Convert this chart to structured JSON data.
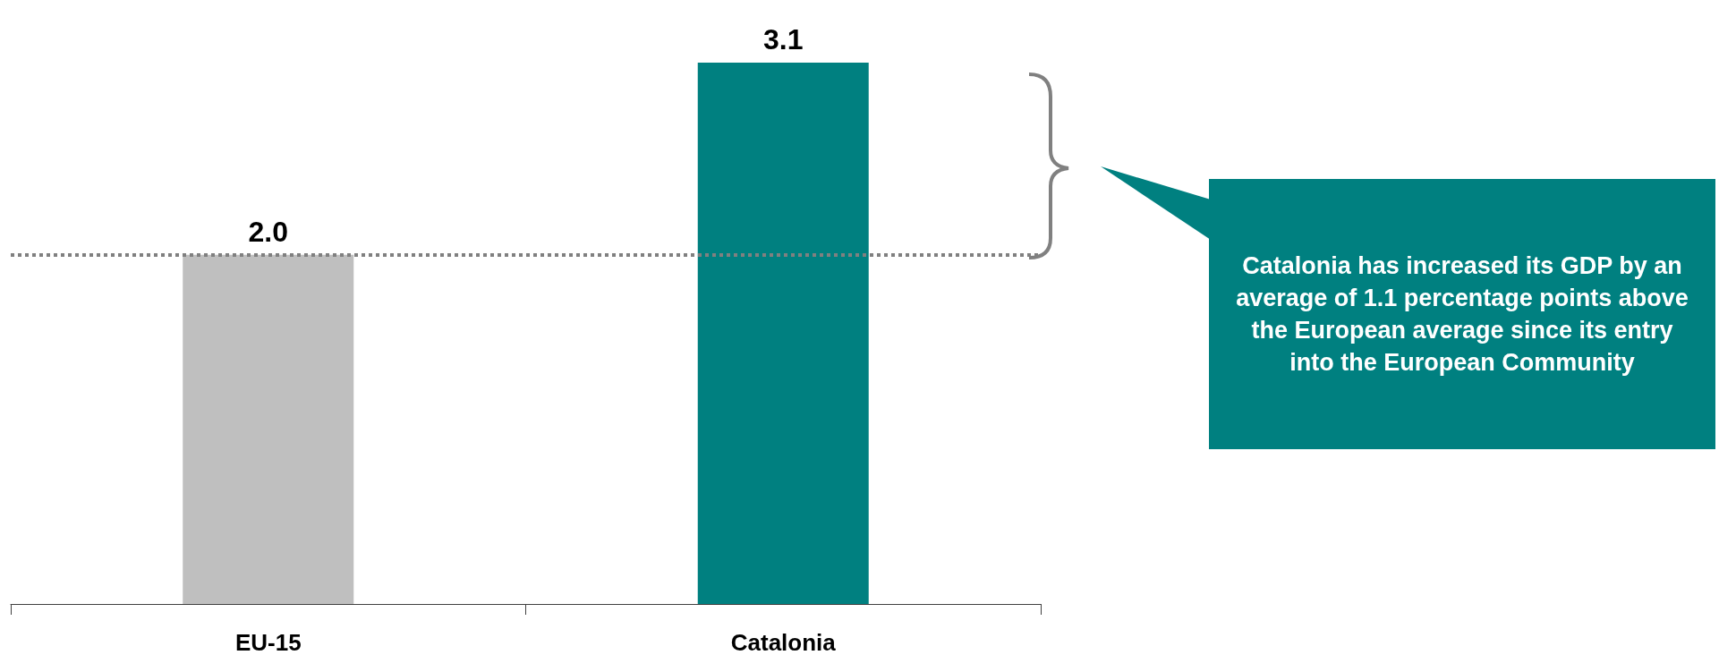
{
  "chart_data": {
    "type": "bar",
    "categories": [
      "EU-15",
      "Catalonia"
    ],
    "values": [
      2.0,
      3.1
    ],
    "colors": [
      "#bfbfbf",
      "#008080"
    ],
    "value_labels": [
      "2.0",
      "3.1"
    ],
    "ylim": [
      0,
      3.1
    ],
    "tick_labels": "x",
    "ref_lines": [
      {
        "axis": "y",
        "value": 2.0,
        "color": "#808080",
        "line_style": "dotted"
      }
    ],
    "annotations": [
      "Catalonia has increased its GDP by an average of 1.1 percentage points above the European average since its entry into the European Community"
    ]
  }
}
